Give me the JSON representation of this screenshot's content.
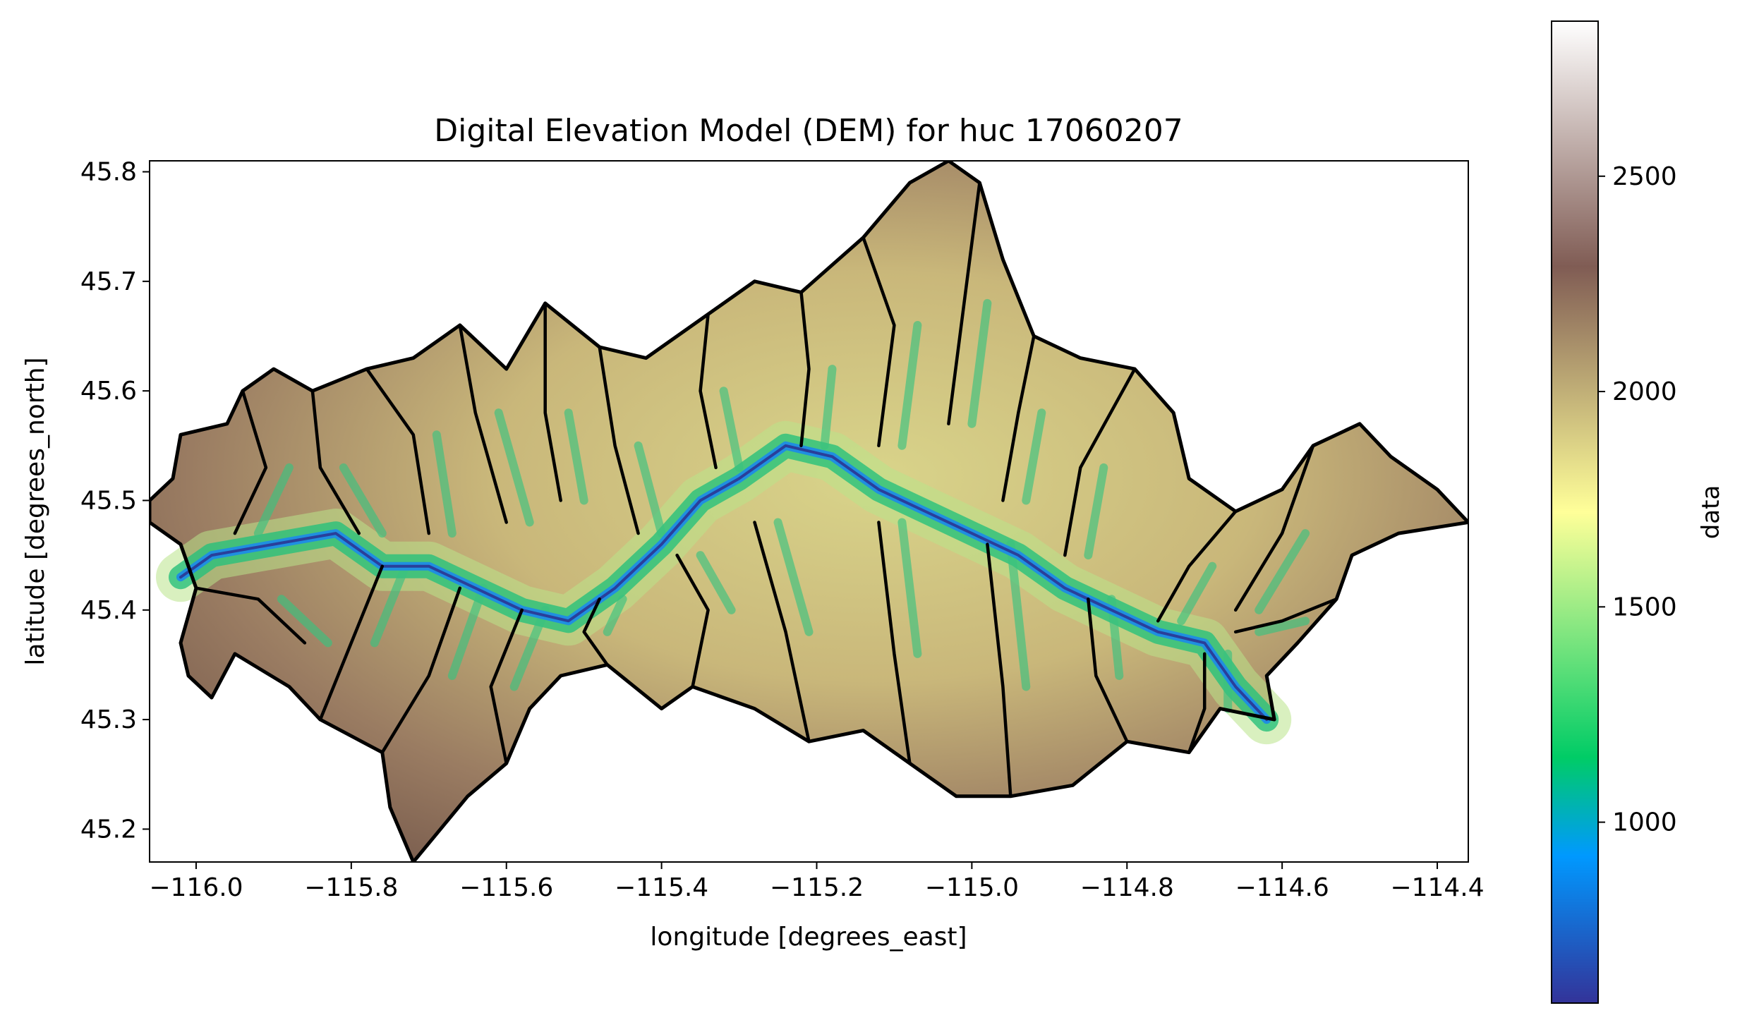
{
  "chart_data": {
    "type": "heatmap",
    "title": "Digital Elevation Model (DEM) for huc 17060207",
    "xlabel": "longitude [degrees_east]",
    "ylabel": "latitude [degrees_north]",
    "xlim": [
      -116.06,
      -114.36
    ],
    "ylim": [
      45.17,
      45.81
    ],
    "x_ticks": [
      -116.0,
      -115.8,
      -115.6,
      -115.4,
      -115.2,
      -115.0,
      -114.8,
      -114.6,
      -114.4
    ],
    "x_tick_labels": [
      "−116.0",
      "−115.8",
      "−115.6",
      "−115.4",
      "−115.2",
      "−115.0",
      "−114.8",
      "−114.6",
      "−114.4"
    ],
    "y_ticks": [
      45.2,
      45.3,
      45.4,
      45.5,
      45.6,
      45.7,
      45.8
    ],
    "y_tick_labels": [
      "45.2",
      "45.3",
      "45.4",
      "45.5",
      "45.6",
      "45.7",
      "45.8"
    ],
    "colorbar": {
      "label": "data",
      "colormap": "terrain",
      "range": [
        580,
        2860
      ],
      "ticks": [
        1000,
        1500,
        2000,
        2500
      ],
      "tick_labels": [
        "1000",
        "1500",
        "2000",
        "2500"
      ]
    },
    "grid": false,
    "outline": [
      [
        -116.06,
        45.48
      ],
      [
        -116.06,
        45.5
      ],
      [
        -116.03,
        45.52
      ],
      [
        -116.02,
        45.56
      ],
      [
        -115.96,
        45.57
      ],
      [
        -115.94,
        45.6
      ],
      [
        -115.9,
        45.62
      ],
      [
        -115.85,
        45.6
      ],
      [
        -115.78,
        45.62
      ],
      [
        -115.72,
        45.63
      ],
      [
        -115.66,
        45.66
      ],
      [
        -115.6,
        45.62
      ],
      [
        -115.55,
        45.68
      ],
      [
        -115.48,
        45.64
      ],
      [
        -115.42,
        45.63
      ],
      [
        -115.34,
        45.67
      ],
      [
        -115.28,
        45.7
      ],
      [
        -115.22,
        45.69
      ],
      [
        -115.14,
        45.74
      ],
      [
        -115.08,
        45.79
      ],
      [
        -115.03,
        45.81
      ],
      [
        -114.99,
        45.79
      ],
      [
        -114.96,
        45.72
      ],
      [
        -114.92,
        45.65
      ],
      [
        -114.86,
        45.63
      ],
      [
        -114.79,
        45.62
      ],
      [
        -114.74,
        45.58
      ],
      [
        -114.72,
        45.52
      ],
      [
        -114.66,
        45.49
      ],
      [
        -114.6,
        45.51
      ],
      [
        -114.56,
        45.55
      ],
      [
        -114.5,
        45.57
      ],
      [
        -114.46,
        45.54
      ],
      [
        -114.4,
        45.51
      ],
      [
        -114.36,
        45.48
      ],
      [
        -114.45,
        45.47
      ],
      [
        -114.51,
        45.45
      ],
      [
        -114.53,
        45.41
      ],
      [
        -114.58,
        45.37
      ],
      [
        -114.62,
        45.34
      ],
      [
        -114.61,
        45.3
      ],
      [
        -114.68,
        45.31
      ],
      [
        -114.72,
        45.27
      ],
      [
        -114.8,
        45.28
      ],
      [
        -114.87,
        45.24
      ],
      [
        -114.95,
        45.23
      ],
      [
        -115.02,
        45.23
      ],
      [
        -115.08,
        45.26
      ],
      [
        -115.14,
        45.29
      ],
      [
        -115.21,
        45.28
      ],
      [
        -115.28,
        45.31
      ],
      [
        -115.36,
        45.33
      ],
      [
        -115.4,
        45.31
      ],
      [
        -115.47,
        45.35
      ],
      [
        -115.53,
        45.34
      ],
      [
        -115.57,
        45.31
      ],
      [
        -115.6,
        45.26
      ],
      [
        -115.65,
        45.23
      ],
      [
        -115.72,
        45.17
      ],
      [
        -115.75,
        45.22
      ],
      [
        -115.76,
        45.27
      ],
      [
        -115.84,
        45.3
      ],
      [
        -115.88,
        45.33
      ],
      [
        -115.95,
        45.36
      ],
      [
        -115.98,
        45.32
      ],
      [
        -116.01,
        45.34
      ],
      [
        -116.02,
        45.37
      ],
      [
        -116.0,
        45.42
      ],
      [
        -116.02,
        45.46
      ],
      [
        -116.06,
        45.48
      ]
    ],
    "main_river": [
      [
        -116.02,
        45.43
      ],
      [
        -115.98,
        45.45
      ],
      [
        -115.9,
        45.46
      ],
      [
        -115.82,
        45.47
      ],
      [
        -115.76,
        45.44
      ],
      [
        -115.7,
        45.44
      ],
      [
        -115.64,
        45.42
      ],
      [
        -115.58,
        45.4
      ],
      [
        -115.52,
        45.39
      ],
      [
        -115.46,
        45.42
      ],
      [
        -115.4,
        45.46
      ],
      [
        -115.35,
        45.5
      ],
      [
        -115.3,
        45.52
      ],
      [
        -115.24,
        45.55
      ],
      [
        -115.18,
        45.54
      ],
      [
        -115.12,
        45.51
      ],
      [
        -115.06,
        45.49
      ],
      [
        -115.0,
        45.47
      ],
      [
        -114.94,
        45.45
      ],
      [
        -114.88,
        45.42
      ],
      [
        -114.82,
        45.4
      ],
      [
        -114.76,
        45.38
      ],
      [
        -114.7,
        45.37
      ],
      [
        -114.66,
        45.33
      ],
      [
        -114.62,
        45.3
      ]
    ],
    "subbasin_boundaries": [
      [
        [
          -115.94,
          45.6
        ],
        [
          -115.91,
          45.53
        ],
        [
          -115.95,
          45.47
        ]
      ],
      [
        [
          -115.85,
          45.6
        ],
        [
          -115.84,
          45.53
        ],
        [
          -115.79,
          45.47
        ]
      ],
      [
        [
          -115.78,
          45.62
        ],
        [
          -115.72,
          45.56
        ],
        [
          -115.7,
          45.47
        ]
      ],
      [
        [
          -115.66,
          45.66
        ],
        [
          -115.64,
          45.58
        ],
        [
          -115.6,
          45.48
        ]
      ],
      [
        [
          -115.55,
          45.68
        ],
        [
          -115.55,
          45.58
        ],
        [
          -115.53,
          45.5
        ]
      ],
      [
        [
          -115.48,
          45.64
        ],
        [
          -115.46,
          45.55
        ],
        [
          -115.43,
          45.47
        ]
      ],
      [
        [
          -115.34,
          45.67
        ],
        [
          -115.35,
          45.6
        ],
        [
          -115.33,
          45.53
        ]
      ],
      [
        [
          -115.22,
          45.69
        ],
        [
          -115.21,
          45.62
        ],
        [
          -115.22,
          45.55
        ]
      ],
      [
        [
          -115.14,
          45.74
        ],
        [
          -115.1,
          45.66
        ],
        [
          -115.12,
          45.55
        ]
      ],
      [
        [
          -114.99,
          45.79
        ],
        [
          -115.01,
          45.68
        ],
        [
          -115.03,
          45.57
        ]
      ],
      [
        [
          -114.92,
          45.65
        ],
        [
          -114.94,
          45.58
        ],
        [
          -114.96,
          45.5
        ]
      ],
      [
        [
          -114.79,
          45.62
        ],
        [
          -114.86,
          45.53
        ],
        [
          -114.88,
          45.45
        ]
      ],
      [
        [
          -114.66,
          45.49
        ],
        [
          -114.72,
          45.44
        ],
        [
          -114.76,
          45.39
        ]
      ],
      [
        [
          -114.56,
          45.55
        ],
        [
          -114.6,
          45.47
        ],
        [
          -114.66,
          45.4
        ]
      ],
      [
        [
          -116.0,
          45.42
        ],
        [
          -115.92,
          45.41
        ],
        [
          -115.86,
          45.37
        ]
      ],
      [
        [
          -115.84,
          45.3
        ],
        [
          -115.8,
          45.37
        ],
        [
          -115.76,
          45.44
        ]
      ],
      [
        [
          -115.76,
          45.27
        ],
        [
          -115.7,
          45.34
        ],
        [
          -115.66,
          45.42
        ]
      ],
      [
        [
          -115.6,
          45.26
        ],
        [
          -115.62,
          45.33
        ],
        [
          -115.58,
          45.4
        ]
      ],
      [
        [
          -115.47,
          45.35
        ],
        [
          -115.5,
          45.38
        ],
        [
          -115.48,
          45.41
        ]
      ],
      [
        [
          -115.36,
          45.33
        ],
        [
          -115.34,
          45.4
        ],
        [
          -115.38,
          45.45
        ]
      ],
      [
        [
          -115.21,
          45.28
        ],
        [
          -115.24,
          45.38
        ],
        [
          -115.28,
          45.48
        ]
      ],
      [
        [
          -115.08,
          45.26
        ],
        [
          -115.1,
          45.36
        ],
        [
          -115.12,
          45.48
        ]
      ],
      [
        [
          -114.95,
          45.23
        ],
        [
          -114.96,
          45.33
        ],
        [
          -114.98,
          45.46
        ]
      ],
      [
        [
          -114.8,
          45.28
        ],
        [
          -114.84,
          45.34
        ],
        [
          -114.85,
          45.41
        ]
      ],
      [
        [
          -114.72,
          45.27
        ],
        [
          -114.7,
          45.31
        ],
        [
          -114.7,
          45.36
        ]
      ],
      [
        [
          -114.53,
          45.41
        ],
        [
          -114.6,
          45.39
        ],
        [
          -114.66,
          45.38
        ]
      ]
    ]
  }
}
